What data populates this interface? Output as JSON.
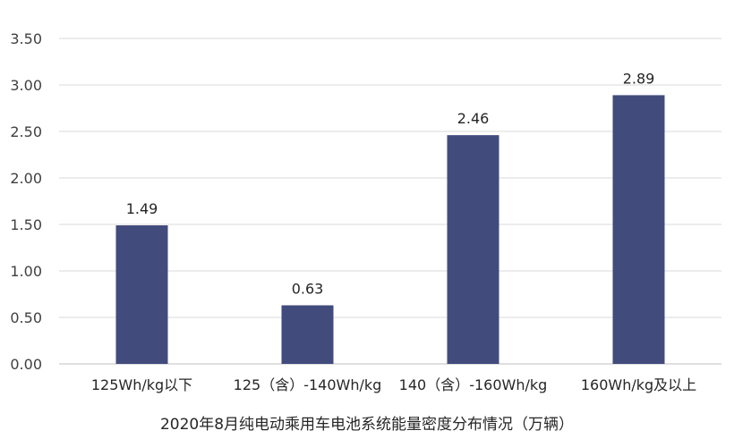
{
  "chart_data": {
    "type": "bar",
    "title": "2020年8月纯电动乘用车电池系统能量密度分布情况（万辆）",
    "categories": [
      "125Wh/kg以下",
      "125（含）-140Wh/kg",
      "140（含）-160Wh/kg",
      "160Wh/kg及以上"
    ],
    "values": [
      1.49,
      0.63,
      2.46,
      2.89
    ],
    "data_labels": [
      "1.49",
      "0.63",
      "2.46",
      "2.89"
    ],
    "yticks": [
      "0.00",
      "0.50",
      "1.00",
      "1.50",
      "2.00",
      "2.50",
      "3.00",
      "3.50"
    ],
    "ylim": [
      0,
      3.5
    ],
    "xlabel": "",
    "ylabel": "",
    "grid": true,
    "legend": "none",
    "bar_color": "#414b7c"
  }
}
